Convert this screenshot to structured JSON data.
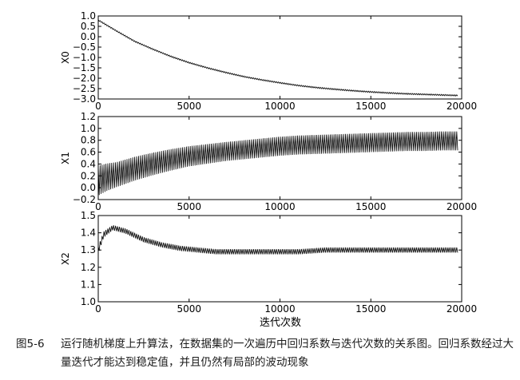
{
  "chart_data": [
    {
      "type": "line",
      "ylabel": "X0",
      "xlim": [
        0,
        20000
      ],
      "ylim": [
        -3.0,
        1.0
      ],
      "xticks": [
        "0",
        "5000",
        "10000",
        "15000",
        "20000"
      ],
      "yticks": [
        "1.0",
        "0.5",
        "0.0",
        "−0.5",
        "−1.0",
        "−1.5",
        "−2.0",
        "−2.5",
        "−3.0"
      ],
      "series": [
        {
          "x": [
            0,
            1000,
            2000,
            3000,
            4000,
            5000,
            6000,
            7000,
            8000,
            9000,
            10000,
            11000,
            12000,
            13000,
            14000,
            15000,
            16000,
            17000,
            18000,
            19000,
            19800
          ],
          "values": [
            0.8,
            0.28,
            -0.22,
            -0.6,
            -0.95,
            -1.25,
            -1.5,
            -1.72,
            -1.92,
            -2.08,
            -2.22,
            -2.35,
            -2.45,
            -2.53,
            -2.6,
            -2.66,
            -2.71,
            -2.75,
            -2.78,
            -2.81,
            -2.83
          ],
          "spread": [
            0.06,
            0.06,
            0.06,
            0.06,
            0.06,
            0.06,
            0.06,
            0.06,
            0.06,
            0.06,
            0.06,
            0.06,
            0.06,
            0.06,
            0.06,
            0.06,
            0.06,
            0.06,
            0.06,
            0.06,
            0.06
          ]
        }
      ]
    },
    {
      "type": "line",
      "ylabel": "X1",
      "xlim": [
        0,
        20000
      ],
      "ylim": [
        -0.2,
        1.2
      ],
      "xticks": [
        "0",
        "5000",
        "10000",
        "15000",
        "20000"
      ],
      "yticks": [
        "1.2",
        "1.0",
        "0.8",
        "0.6",
        "0.4",
        "0.2",
        "0.0",
        "−0.2"
      ],
      "series": [
        {
          "x": [
            0,
            500,
            1000,
            2000,
            3000,
            4000,
            5000,
            6000,
            7000,
            8000,
            9000,
            10000,
            11000,
            12000,
            13000,
            14000,
            15000,
            16000,
            17000,
            18000,
            19000,
            19800
          ],
          "values": [
            0.12,
            0.18,
            0.22,
            0.32,
            0.4,
            0.47,
            0.53,
            0.57,
            0.61,
            0.64,
            0.67,
            0.7,
            0.72,
            0.73,
            0.74,
            0.75,
            0.76,
            0.77,
            0.78,
            0.78,
            0.79,
            0.79
          ],
          "spread": [
            0.5,
            0.46,
            0.42,
            0.4,
            0.38,
            0.36,
            0.34,
            0.33,
            0.32,
            0.32,
            0.32,
            0.32,
            0.32,
            0.32,
            0.32,
            0.32,
            0.32,
            0.32,
            0.32,
            0.32,
            0.32,
            0.32
          ]
        }
      ]
    },
    {
      "type": "line",
      "ylabel": "X2",
      "xlim": [
        0,
        20000
      ],
      "ylim": [
        1.0,
        1.5
      ],
      "xticks": [
        "0",
        "5000",
        "10000",
        "15000",
        "20000"
      ],
      "yticks": [
        "1.5",
        "1.4",
        "1.3",
        "1.2",
        "1.1",
        "1.0"
      ],
      "series": [
        {
          "x": [
            0,
            300,
            800,
            1500,
            2500,
            3500,
            4500,
            5500,
            6500,
            7500,
            8500,
            9500,
            11000,
            12500,
            14000,
            15500,
            17000,
            18500,
            19800
          ],
          "values": [
            1.3,
            1.39,
            1.43,
            1.41,
            1.36,
            1.33,
            1.31,
            1.3,
            1.29,
            1.29,
            1.29,
            1.29,
            1.29,
            1.3,
            1.3,
            1.3,
            1.3,
            1.3,
            1.3
          ],
          "spread": [
            0.04,
            0.035,
            0.03,
            0.03,
            0.03,
            0.03,
            0.03,
            0.03,
            0.03,
            0.03,
            0.03,
            0.03,
            0.03,
            0.03,
            0.03,
            0.03,
            0.03,
            0.03,
            0.03
          ]
        }
      ]
    }
  ],
  "xlabel": "迭代次数",
  "caption": {
    "number": "图5-6",
    "text": "运行随机梯度上升算法，在数据集的一次遍历中回归系数与迭代次数的关系图。回归系数经过大量迭代才能达到稳定值，并且仍然有局部的波动现象"
  }
}
